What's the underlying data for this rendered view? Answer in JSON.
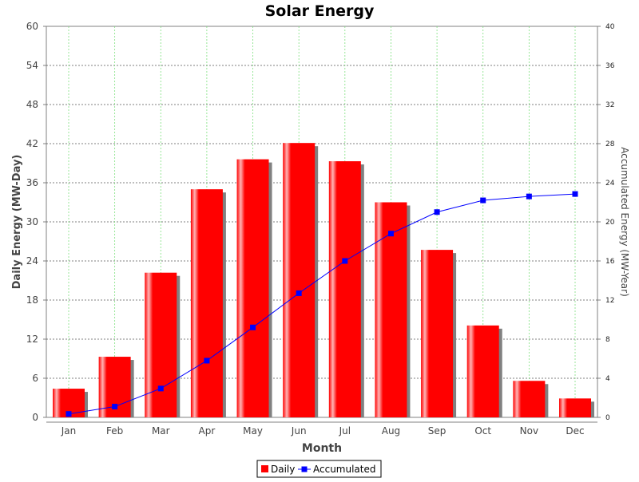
{
  "chart_data": {
    "type": "bar",
    "title": "Solar Energy",
    "xlabel": "Month",
    "ylabel": "Daily Energy (MW-Day)",
    "y2label": "Accumulated Energy (MW-Year)",
    "categories": [
      "Jan",
      "Feb",
      "Mar",
      "Apr",
      "May",
      "Jun",
      "Jul",
      "Aug",
      "Sep",
      "Oct",
      "Nov",
      "Dec"
    ],
    "ylim": [
      0,
      60
    ],
    "yticks": [
      0,
      6,
      12,
      18,
      24,
      30,
      36,
      42,
      48,
      54,
      60
    ],
    "y2lim": [
      0,
      40
    ],
    "y2ticks": [
      0,
      4,
      8,
      12,
      16,
      20,
      24,
      28,
      32,
      36,
      40
    ],
    "grid": true,
    "legend_placement": "bottom-center",
    "series": [
      {
        "name": "Daily",
        "type": "bar",
        "axis": "left",
        "color": "#ff0000",
        "values": [
          4.4,
          9.3,
          22.2,
          35.0,
          39.6,
          42.1,
          39.3,
          33.0,
          25.7,
          14.1,
          5.6,
          2.9
        ]
      },
      {
        "name": "Accumulated",
        "type": "line",
        "axis": "right",
        "color": "#0000ff",
        "values": [
          0.35,
          1.1,
          2.95,
          5.8,
          9.2,
          12.7,
          16.0,
          18.8,
          21.0,
          22.2,
          22.6,
          22.85
        ]
      }
    ]
  }
}
